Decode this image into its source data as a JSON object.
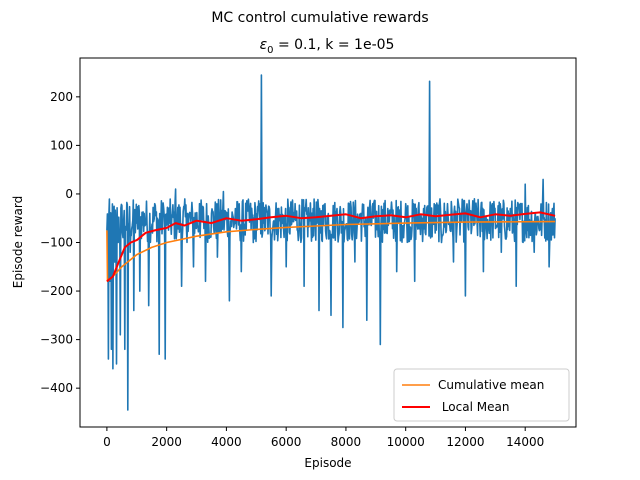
{
  "chart_data": {
    "type": "line",
    "suptitle": "MC control cumulative rewards",
    "title_prefix": "ε",
    "title_subscript": "0",
    "title_suffix": " = 0.1, k = 1e-05",
    "xlabel": "Episode",
    "ylabel": "Episode reward",
    "xlim": [
      -900,
      15700
    ],
    "ylim": [
      -480,
      280
    ],
    "x_ticks": [
      0,
      2000,
      4000,
      6000,
      8000,
      10000,
      12000,
      14000
    ],
    "x_tick_labels": [
      "0",
      "2000",
      "4000",
      "6000",
      "8000",
      "10000",
      "12000",
      "14000"
    ],
    "y_ticks": [
      -400,
      -300,
      -200,
      -100,
      0,
      100,
      200
    ],
    "y_tick_labels": [
      "−400",
      "−300",
      "−200",
      "−100",
      "0",
      "100",
      "200"
    ],
    "grid": false,
    "legend_position": "lower-right",
    "episodes_total": 15000,
    "series": [
      {
        "key": "episode",
        "color": "#1f77b4",
        "anchors": [
          [
            0,
            -75
          ],
          [
            50,
            -340
          ],
          [
            100,
            -180
          ],
          [
            150,
            -320
          ],
          [
            200,
            -360
          ],
          [
            260,
            -140
          ],
          [
            320,
            -350
          ],
          [
            380,
            -100
          ],
          [
            450,
            -290
          ],
          [
            520,
            -80
          ],
          [
            600,
            -320
          ],
          [
            700,
            -445
          ],
          [
            780,
            -120
          ],
          [
            900,
            -240
          ],
          [
            1000,
            -60
          ],
          [
            1100,
            -200
          ],
          [
            1250,
            -40
          ],
          [
            1400,
            -230
          ],
          [
            1600,
            -20
          ],
          [
            1750,
            -330
          ],
          [
            1900,
            -30
          ],
          [
            1950,
            -340
          ],
          [
            2100,
            -60
          ],
          [
            2300,
            10
          ],
          [
            2500,
            -190
          ],
          [
            2700,
            -40
          ],
          [
            2900,
            -150
          ],
          [
            3100,
            -20
          ],
          [
            3300,
            -180
          ],
          [
            3500,
            -40
          ],
          [
            3700,
            -130
          ],
          [
            3900,
            5
          ],
          [
            4100,
            -220
          ],
          [
            4300,
            -30
          ],
          [
            4500,
            -160
          ],
          [
            4700,
            -20
          ],
          [
            4900,
            -100
          ],
          [
            5100,
            -40
          ],
          [
            5170,
            245
          ],
          [
            5250,
            -60
          ],
          [
            5500,
            -210
          ],
          [
            5700,
            -30
          ],
          [
            6000,
            -150
          ],
          [
            6300,
            -20
          ],
          [
            6600,
            -190
          ],
          [
            6900,
            -30
          ],
          [
            7100,
            -240
          ],
          [
            7300,
            -20
          ],
          [
            7500,
            -250
          ],
          [
            7700,
            -30
          ],
          [
            7900,
            -275
          ],
          [
            8100,
            -20
          ],
          [
            8300,
            -140
          ],
          [
            8500,
            -40
          ],
          [
            8700,
            -260
          ],
          [
            8900,
            -20
          ],
          [
            9150,
            -310
          ],
          [
            9400,
            -30
          ],
          [
            9700,
            -160
          ],
          [
            10000,
            -20
          ],
          [
            10300,
            -180
          ],
          [
            10600,
            -30
          ],
          [
            10800,
            232
          ],
          [
            10900,
            -50
          ],
          [
            11200,
            -100
          ],
          [
            11400,
            -20
          ],
          [
            11600,
            -140
          ],
          [
            11800,
            -30
          ],
          [
            12000,
            -210
          ],
          [
            12300,
            -10
          ],
          [
            12600,
            -160
          ],
          [
            12900,
            -20
          ],
          [
            13200,
            -120
          ],
          [
            13500,
            -30
          ],
          [
            13700,
            -190
          ],
          [
            14000,
            20
          ],
          [
            14300,
            -120
          ],
          [
            14600,
            30
          ],
          [
            14800,
            -150
          ],
          [
            15000,
            -50
          ]
        ]
      },
      {
        "key": "cumulative",
        "name": "Cumulative mean",
        "color": "#ff7f0e",
        "points": [
          [
            0,
            -75
          ],
          [
            20,
            -180
          ],
          [
            200,
            -170
          ],
          [
            500,
            -150
          ],
          [
            1000,
            -125
          ],
          [
            1500,
            -110
          ],
          [
            2000,
            -100
          ],
          [
            3000,
            -87
          ],
          [
            4000,
            -78
          ],
          [
            5000,
            -73
          ],
          [
            6000,
            -69
          ],
          [
            7000,
            -66
          ],
          [
            8000,
            -63
          ],
          [
            10000,
            -60
          ],
          [
            12000,
            -58
          ],
          [
            15000,
            -57
          ]
        ]
      },
      {
        "key": "local",
        "name": " Local Mean",
        "color": "#ff0000",
        "points": [
          [
            0,
            -180
          ],
          [
            200,
            -170
          ],
          [
            400,
            -140
          ],
          [
            600,
            -110
          ],
          [
            800,
            -100
          ],
          [
            1000,
            -95
          ],
          [
            1300,
            -80
          ],
          [
            1600,
            -75
          ],
          [
            2000,
            -70
          ],
          [
            2300,
            -60
          ],
          [
            2600,
            -65
          ],
          [
            3000,
            -55
          ],
          [
            3500,
            -60
          ],
          [
            4000,
            -50
          ],
          [
            4500,
            -55
          ],
          [
            5000,
            -52
          ],
          [
            5500,
            -48
          ],
          [
            6000,
            -45
          ],
          [
            6500,
            -50
          ],
          [
            7000,
            -48
          ],
          [
            7500,
            -45
          ],
          [
            8000,
            -42
          ],
          [
            8500,
            -50
          ],
          [
            9000,
            -46
          ],
          [
            9500,
            -44
          ],
          [
            10000,
            -48
          ],
          [
            10500,
            -42
          ],
          [
            11000,
            -46
          ],
          [
            11500,
            -43
          ],
          [
            12000,
            -40
          ],
          [
            12500,
            -48
          ],
          [
            13000,
            -42
          ],
          [
            13500,
            -45
          ],
          [
            14000,
            -41
          ],
          [
            14500,
            -38
          ],
          [
            15000,
            -45
          ]
        ]
      }
    ]
  }
}
